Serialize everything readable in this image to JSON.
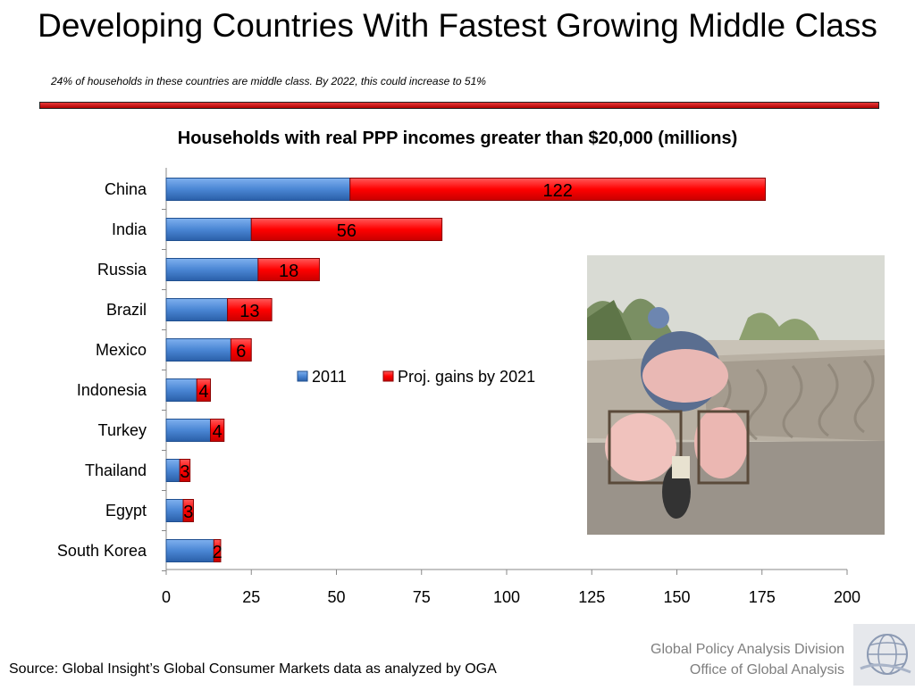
{
  "slide": {
    "title": "Developing Countries With Fastest Growing Middle Class",
    "subtitle": "24% of households in these countries are middle class.  By 2022, this could increase to 51%",
    "source": "Source: Global Insight’s Global Consumer Markets data as analyzed by OGA",
    "org_line1": "Global Policy Analysis Division",
    "org_line2": "Office of Global Analysis"
  },
  "colors": {
    "series_2011": "#4a86d4",
    "series_gain": "#ff0000",
    "rule": "#c00000",
    "org_text": "#7f7f7f"
  },
  "photo": {
    "icon": "photo-motorbike-pigs"
  },
  "chart_data": {
    "type": "bar",
    "orientation": "horizontal",
    "stacked": true,
    "title": "Households with real PPP incomes greater than $20,000 (millions)",
    "xlabel": "",
    "ylabel": "",
    "categories": [
      "China",
      "India",
      "Russia",
      "Brazil",
      "Mexico",
      "Indonesia",
      "Turkey",
      "Thailand",
      "Egypt",
      "South Korea"
    ],
    "series": [
      {
        "name": "2011",
        "values": [
          54,
          25,
          27,
          18,
          19,
          9,
          13,
          4,
          5,
          14
        ]
      },
      {
        "name": "Proj. gains by 2021",
        "values": [
          122,
          56,
          18,
          13,
          6,
          4,
          4,
          3,
          3,
          2
        ]
      }
    ],
    "data_labels": [
      "122",
      "56",
      "18",
      "13",
      "6",
      "4",
      "4",
      "3",
      "3",
      "2"
    ],
    "xlim": [
      0,
      200
    ],
    "xticks": [
      0,
      25,
      50,
      75,
      100,
      125,
      150,
      175,
      200
    ],
    "legend_position": "center",
    "grid": false
  }
}
